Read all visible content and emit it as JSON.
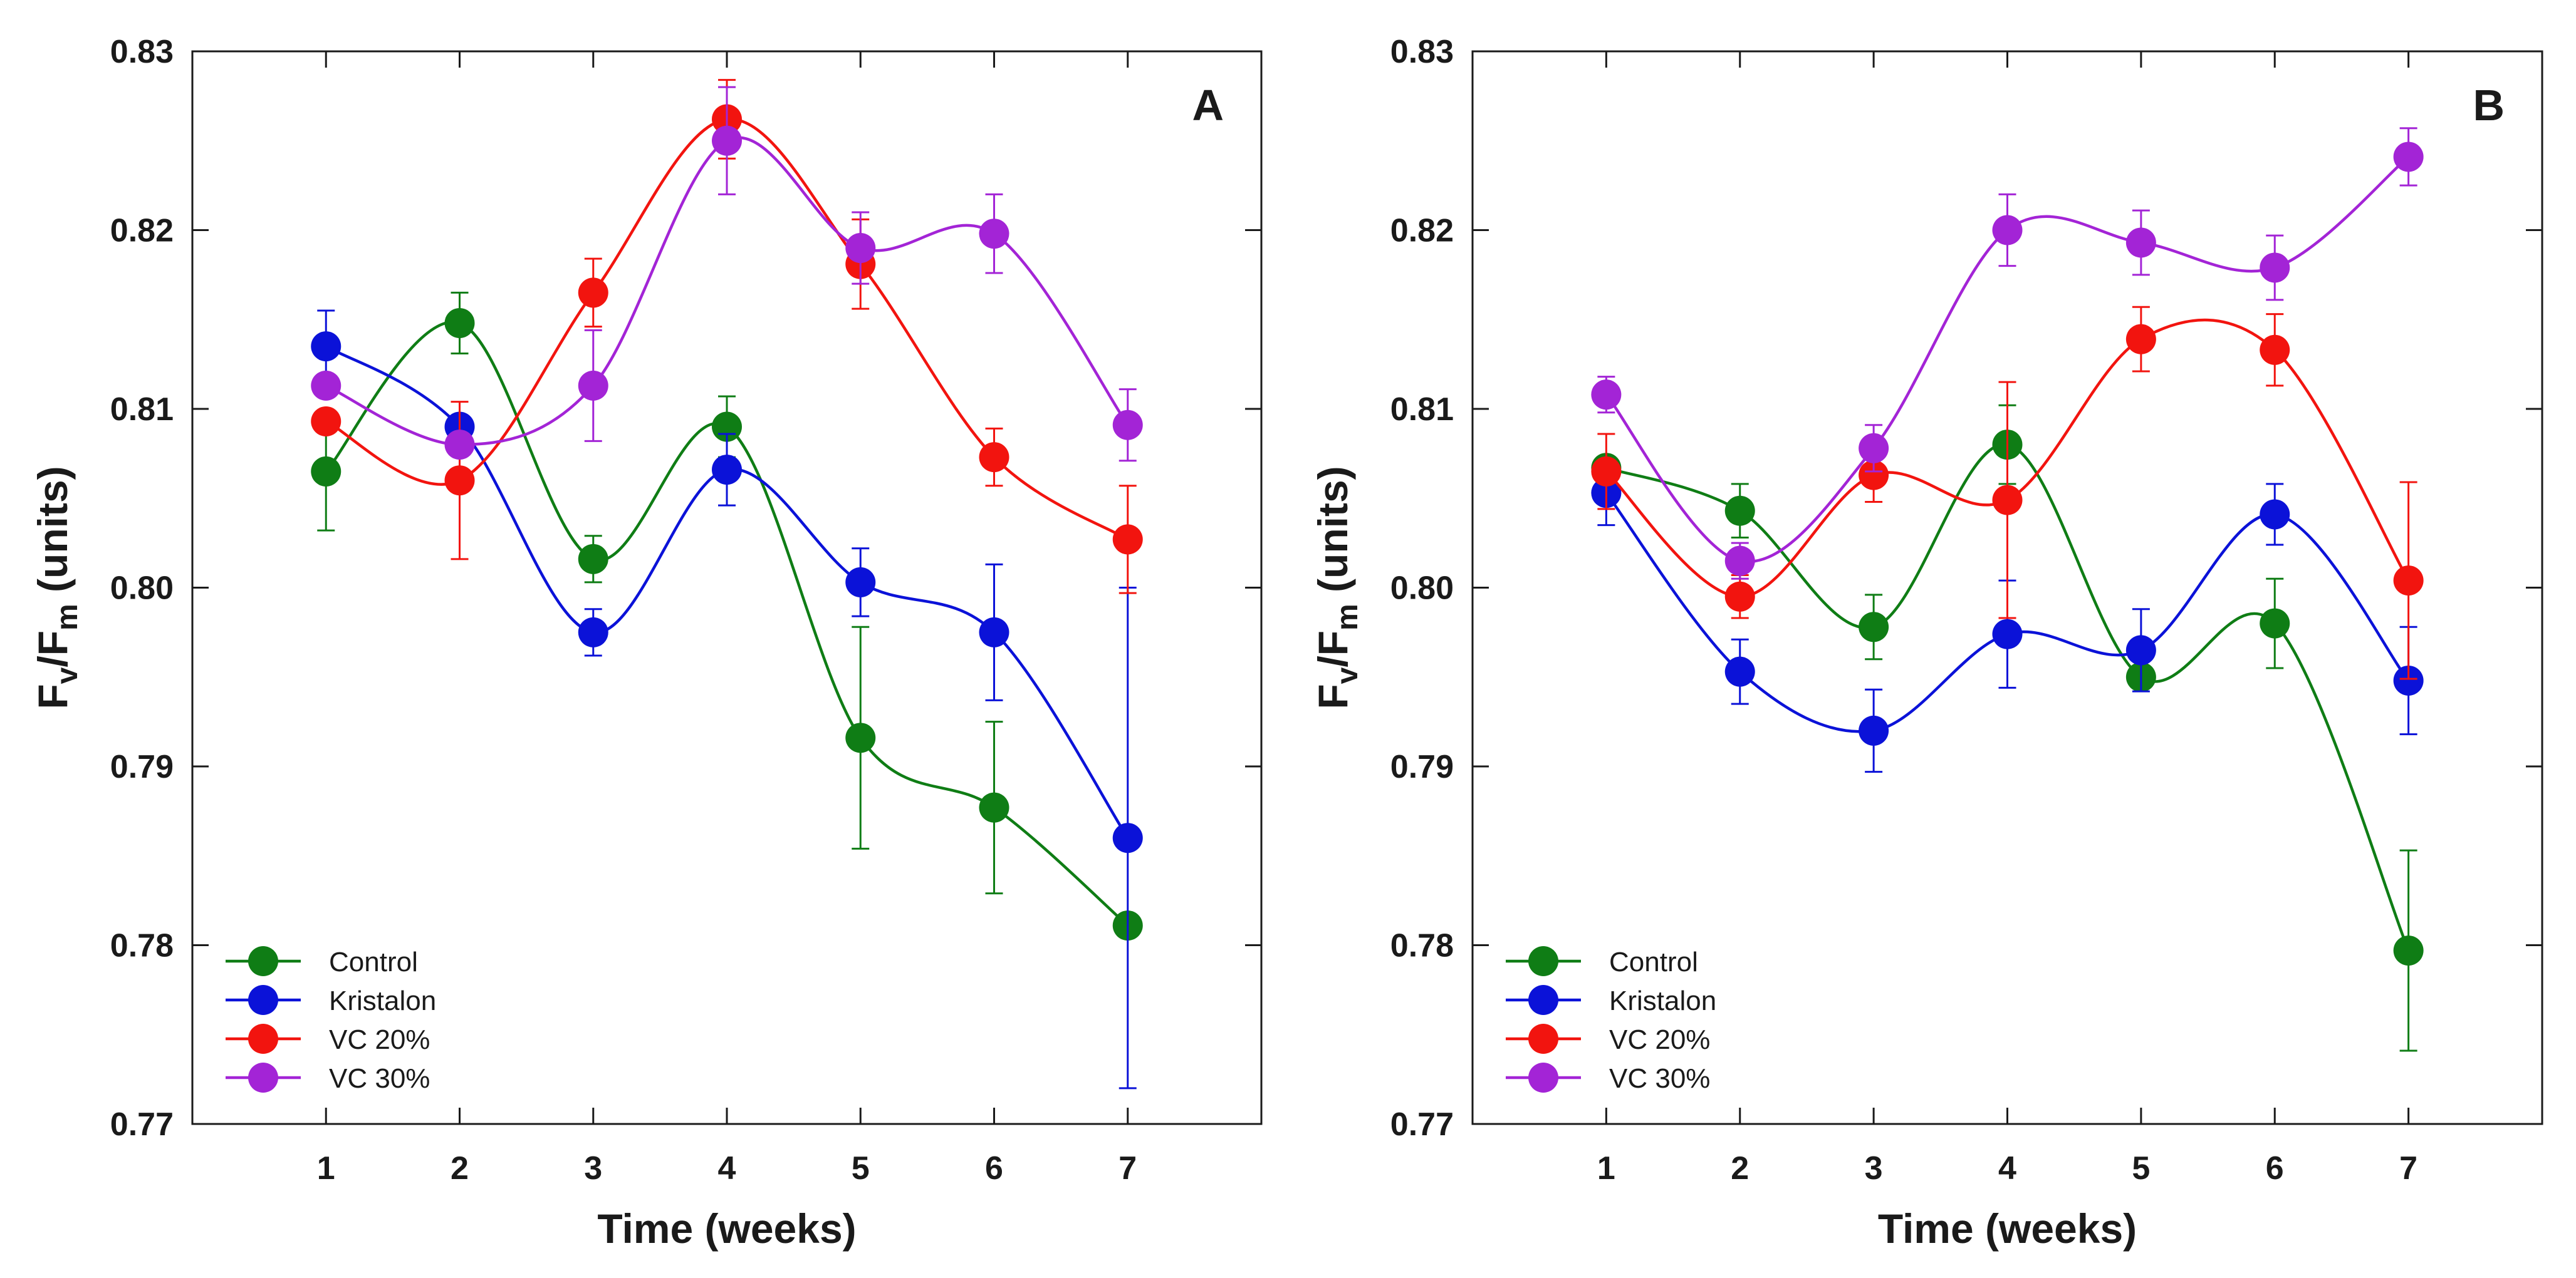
{
  "chart_data": [
    {
      "type": "line",
      "panel_label": "A",
      "xlabel": "Time (weeks)",
      "ylabel": {
        "main": "F",
        "sub1": "v",
        "slash": "/F",
        "sub2": "m",
        "unit": " (units)"
      },
      "xlim": [
        0,
        8
      ],
      "ylim": [
        0.77,
        0.83
      ],
      "x": [
        1,
        2,
        3,
        4,
        5,
        6,
        7
      ],
      "x_ticks": [
        1,
        2,
        3,
        4,
        5,
        6,
        7
      ],
      "y_ticks": [
        0.77,
        0.78,
        0.79,
        0.8,
        0.81,
        0.82,
        0.83
      ],
      "y_tick_labels": [
        "0.77",
        "0.78",
        "0.79",
        "0.80",
        "0.81",
        "0.82",
        "0.83"
      ],
      "legend_position": "bottom-left",
      "series": [
        {
          "name": "Control",
          "color": "#0f7d15",
          "values": [
            0.8065,
            0.8148,
            0.8016,
            0.809,
            0.7916,
            0.7877,
            0.7811
          ],
          "errors": [
            0.0033,
            0.0017,
            0.0013,
            0.0017,
            0.0062,
            0.0048,
            0.0
          ]
        },
        {
          "name": "Kristalon",
          "color": "#0b12d8",
          "values": [
            0.8135,
            0.809,
            0.7975,
            0.8066,
            0.8003,
            0.7975,
            0.786
          ],
          "errors": [
            0.002,
            0.0,
            0.0013,
            0.002,
            0.0019,
            0.0038,
            0.014
          ]
        },
        {
          "name": "VC 20%",
          "color": "#f2140f",
          "values": [
            0.8093,
            0.806,
            0.8165,
            0.8262,
            0.8181,
            0.8073,
            0.8027
          ],
          "errors": [
            0.0,
            0.0044,
            0.0019,
            0.0022,
            0.0025,
            0.0016,
            0.003
          ]
        },
        {
          "name": "VC 30%",
          "color": "#a324d6",
          "values": [
            0.8113,
            0.808,
            0.8113,
            0.825,
            0.819,
            0.8198,
            0.8091
          ],
          "errors": [
            0.0,
            0.0,
            0.0031,
            0.003,
            0.002,
            0.0022,
            0.002
          ]
        }
      ]
    },
    {
      "type": "line",
      "panel_label": "B",
      "xlabel": "Time (weeks)",
      "ylabel": {
        "main": "F",
        "sub1": "v",
        "slash": "/F",
        "sub2": "m",
        "unit": " (units)"
      },
      "xlim": [
        0,
        8
      ],
      "ylim": [
        0.77,
        0.83
      ],
      "x": [
        1,
        2,
        3,
        4,
        5,
        6,
        7
      ],
      "x_ticks": [
        1,
        2,
        3,
        4,
        5,
        6,
        7
      ],
      "y_ticks": [
        0.77,
        0.78,
        0.79,
        0.8,
        0.81,
        0.82,
        0.83
      ],
      "y_tick_labels": [
        "0.77",
        "0.78",
        "0.79",
        "0.80",
        "0.81",
        "0.82",
        "0.83"
      ],
      "legend_position": "bottom-left",
      "series": [
        {
          "name": "Control",
          "color": "#0f7d15",
          "values": [
            0.8067,
            0.8043,
            0.7978,
            0.808,
            0.795,
            0.798,
            0.7797
          ],
          "errors": [
            0.0,
            0.0015,
            0.0018,
            0.0022,
            0.0,
            0.0025,
            0.0056
          ]
        },
        {
          "name": "Kristalon",
          "color": "#0b12d8",
          "values": [
            0.8053,
            0.7953,
            0.792,
            0.7974,
            0.7965,
            0.8041,
            0.7948
          ],
          "errors": [
            0.0018,
            0.0018,
            0.0023,
            0.003,
            0.0023,
            0.0017,
            0.003
          ]
        },
        {
          "name": "VC 20%",
          "color": "#f2140f",
          "values": [
            0.8065,
            0.7995,
            0.8063,
            0.8049,
            0.8139,
            0.8133,
            0.8004
          ],
          "errors": [
            0.0021,
            0.0012,
            0.0015,
            0.0066,
            0.0018,
            0.002,
            0.0055
          ]
        },
        {
          "name": "VC 30%",
          "color": "#a324d6",
          "values": [
            0.8108,
            0.8015,
            0.8078,
            0.82,
            0.8193,
            0.8179,
            0.8241
          ],
          "errors": [
            0.001,
            0.001,
            0.0013,
            0.002,
            0.0018,
            0.0018,
            0.0016
          ]
        }
      ]
    }
  ]
}
